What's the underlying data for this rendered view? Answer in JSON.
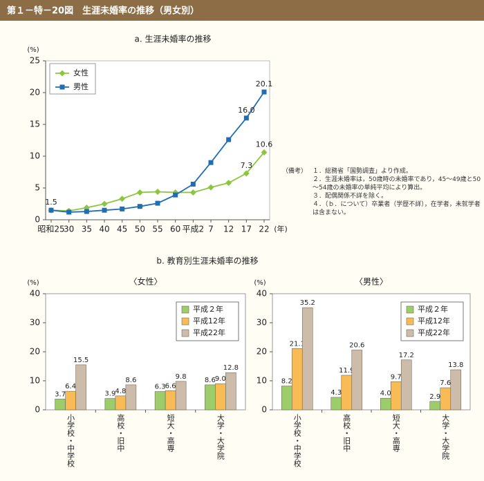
{
  "header": {
    "title": "第１－特－20図　生涯未婚率の推移（男女別）"
  },
  "notes": {
    "label": "（備考）",
    "items": [
      "１．総務省「国勢調査」より作成。",
      "２．生涯未婚率は，50歳時の未婚率であり，45～49歳と50～54歳の未婚率の単純平均により算出。",
      "３．配偶関係不詳を除く。",
      "４．（ｂ．について）卒業者（学歴不詳），在学者，未就学者は含まない。"
    ]
  },
  "panel_b": {
    "title": "b.  教育別生涯未婚率の推移"
  },
  "chart_data": [
    {
      "type": "line",
      "title": "a.  生涯未婚率の推移",
      "y_label": "(%)",
      "x_label": "(年)",
      "categories": [
        "昭和25",
        "30",
        "35",
        "40",
        "45",
        "50",
        "55",
        "60",
        "平成2",
        "7",
        "12",
        "17",
        "22"
      ],
      "series": [
        {
          "name": "女性",
          "color": "#8cc63f",
          "marker": "diamond",
          "values": [
            1.5,
            1.4,
            1.9,
            2.5,
            3.3,
            4.3,
            4.4,
            4.3,
            4.3,
            5.1,
            5.8,
            7.3,
            10.6
          ],
          "value_labels": [
            null,
            null,
            null,
            null,
            null,
            null,
            null,
            null,
            null,
            null,
            null,
            "7.3",
            "10.6"
          ]
        },
        {
          "name": "男性",
          "color": "#1f6db3",
          "marker": "square",
          "values": [
            1.5,
            1.2,
            1.3,
            1.5,
            1.7,
            2.1,
            2.6,
            3.9,
            5.6,
            9.0,
            12.6,
            16.0,
            20.1
          ],
          "value_labels": [
            "1.5",
            null,
            null,
            null,
            null,
            null,
            null,
            null,
            null,
            null,
            null,
            "16.0",
            "20.1"
          ]
        }
      ],
      "ylim": [
        0,
        25
      ],
      "yticks": [
        0,
        5,
        10,
        15,
        20,
        25
      ],
      "grid": false,
      "legend": "upper left"
    },
    {
      "type": "bar",
      "title": "〈女性〉",
      "y_label": "(%)",
      "categories": [
        "小学校・中学校",
        "高校・旧中",
        "短大・高専",
        "大学・大学院"
      ],
      "series": [
        {
          "name": "平成２年",
          "color": "#9dcd6b",
          "values": [
            3.7,
            3.9,
            6.3,
            8.6
          ],
          "value_labels": [
            "3.7",
            "3.9",
            "6.3",
            "8.6"
          ]
        },
        {
          "name": "平成12年",
          "color": "#f9bb55",
          "values": [
            6.4,
            4.8,
            6.6,
            9.0
          ],
          "value_labels": [
            "6.4",
            "4.8",
            "6.6",
            "9.0"
          ]
        },
        {
          "name": "平成22年",
          "color": "#cdbcaa",
          "values": [
            15.5,
            8.6,
            9.8,
            12.8
          ],
          "value_labels": [
            "15.5",
            "8.6",
            "9.8",
            "12.8"
          ]
        }
      ],
      "ylim": [
        0,
        40
      ],
      "yticks": [
        0,
        10,
        20,
        30,
        40
      ],
      "grid": false,
      "legend": "upper right"
    },
    {
      "type": "bar",
      "title": "〈男性〉",
      "y_label": "(%)",
      "categories": [
        "小学校・中学校",
        "高校・旧中",
        "短大・高専",
        "大学・大学院"
      ],
      "series": [
        {
          "name": "平成２年",
          "color": "#9dcd6b",
          "values": [
            8.2,
            4.3,
            4.0,
            2.9
          ],
          "value_labels": [
            "8.2",
            "4.3",
            "4.0",
            "2.9"
          ]
        },
        {
          "name": "平成12年",
          "color": "#f9bb55",
          "values": [
            21.1,
            11.9,
            9.7,
            7.6
          ],
          "value_labels": [
            "21.1",
            "11.9",
            "9.7",
            "7.6"
          ]
        },
        {
          "name": "平成22年",
          "color": "#cdbcaa",
          "values": [
            35.2,
            20.6,
            17.2,
            13.8
          ],
          "value_labels": [
            "35.2",
            "20.6",
            "17.2",
            "13.8"
          ]
        }
      ],
      "ylim": [
        0,
        40
      ],
      "yticks": [
        0,
        10,
        20,
        30,
        40
      ],
      "grid": false,
      "legend": "upper right"
    }
  ]
}
